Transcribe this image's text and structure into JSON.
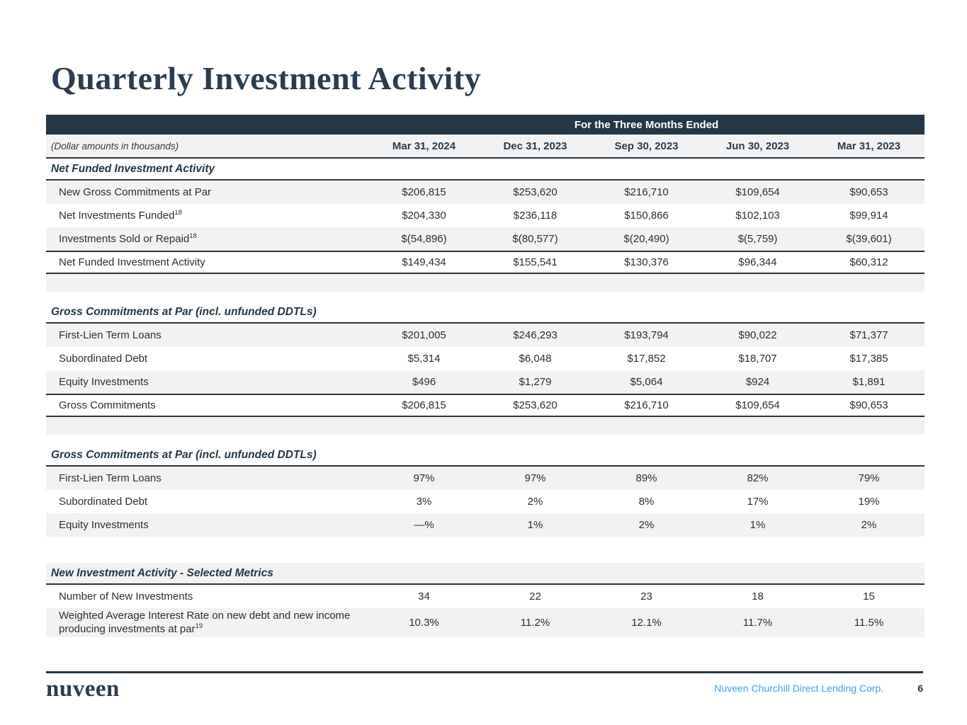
{
  "page": {
    "title": "Quarterly Investment Activity",
    "colors": {
      "navy": "#253744",
      "row_shade": "#f2f2f2",
      "teal": "#36a5d8"
    },
    "footer": {
      "logo_text": "nuveen",
      "company": "Nuveen Churchill Direct Lending Corp.",
      "page_number": "6"
    }
  },
  "table": {
    "banner": "For the Three Months Ended",
    "units_note": "(Dollar amounts in thousands)",
    "columns": [
      "Mar 31, 2024",
      "Dec 31, 2023",
      "Sep 30, 2023",
      "Jun 30, 2023",
      "Mar 31, 2023"
    ],
    "sections": [
      {
        "header": "Net Funded Investment Activity",
        "header_shaded": false,
        "spacer": "shaded",
        "rows": [
          {
            "label": "New Gross Commitments at Par",
            "sup": "",
            "shaded": true,
            "total": false,
            "values": [
              "$206,815",
              "$253,620",
              "$216,710",
              "$109,654",
              "$90,653"
            ]
          },
          {
            "label": "Net Investments Funded",
            "sup": "18",
            "shaded": false,
            "total": false,
            "values": [
              "$204,330",
              "$236,118",
              "$150,866",
              "$102,103",
              "$99,914"
            ]
          },
          {
            "label": "Investments Sold or Repaid",
            "sup": "18",
            "shaded": true,
            "total": false,
            "values": [
              "$(54,896)",
              "$(80,577)",
              "$(20,490)",
              "$(5,759)",
              "$(39,601)"
            ]
          },
          {
            "label": "Net Funded Investment Activity",
            "sup": "",
            "shaded": false,
            "total": true,
            "values": [
              "$149,434",
              "$155,541",
              "$130,376",
              "$96,344",
              "$60,312"
            ]
          }
        ]
      },
      {
        "header": "Gross Commitments at Par (incl. unfunded DDTLs)",
        "header_shaded": false,
        "spacer": "shaded",
        "rows": [
          {
            "label": "First-Lien Term Loans",
            "sup": "",
            "shaded": true,
            "total": false,
            "values": [
              "$201,005",
              "$246,293",
              "$193,794",
              "$90,022",
              "$71,377"
            ]
          },
          {
            "label": "Subordinated Debt",
            "sup": "",
            "shaded": false,
            "total": false,
            "values": [
              "$5,314",
              "$6,048",
              "$17,852",
              "$18,707",
              "$17,385"
            ]
          },
          {
            "label": "Equity Investments",
            "sup": "",
            "shaded": true,
            "total": false,
            "values": [
              "$496",
              "$1,279",
              "$5,064",
              "$924",
              "$1,891"
            ]
          },
          {
            "label": "Gross Commitments",
            "sup": "",
            "shaded": false,
            "total": true,
            "values": [
              "$206,815",
              "$253,620",
              "$216,710",
              "$109,654",
              "$90,653"
            ]
          }
        ]
      },
      {
        "header": "Gross Commitments at Par (incl. unfunded DDTLs)",
        "header_shaded": false,
        "spacer": "plain",
        "rows": [
          {
            "label": "First-Lien Term Loans",
            "sup": "",
            "shaded": true,
            "total": false,
            "values": [
              "97%",
              "97%",
              "89%",
              "82%",
              "79%"
            ]
          },
          {
            "label": "Subordinated Debt",
            "sup": "",
            "shaded": false,
            "total": false,
            "values": [
              "3%",
              "2%",
              "8%",
              "17%",
              "19%"
            ]
          },
          {
            "label": "Equity Investments",
            "sup": "",
            "shaded": true,
            "total": false,
            "values": [
              "—%",
              "1%",
              "2%",
              "1%",
              "2%"
            ]
          }
        ]
      },
      {
        "header": "New Investment Activity - Selected Metrics",
        "header_shaded": true,
        "spacer": "none",
        "rows": [
          {
            "label": "Number of New Investments",
            "sup": "",
            "shaded": false,
            "total": false,
            "values": [
              "34",
              "22",
              "23",
              "18",
              "15"
            ]
          },
          {
            "label": "Weighted Average Interest Rate on new debt and new income producing investments at par",
            "sup": "19",
            "shaded": true,
            "total": false,
            "tall": true,
            "values": [
              "10.3%",
              "11.2%",
              "12.1%",
              "11.7%",
              "11.5%"
            ]
          }
        ]
      }
    ]
  }
}
